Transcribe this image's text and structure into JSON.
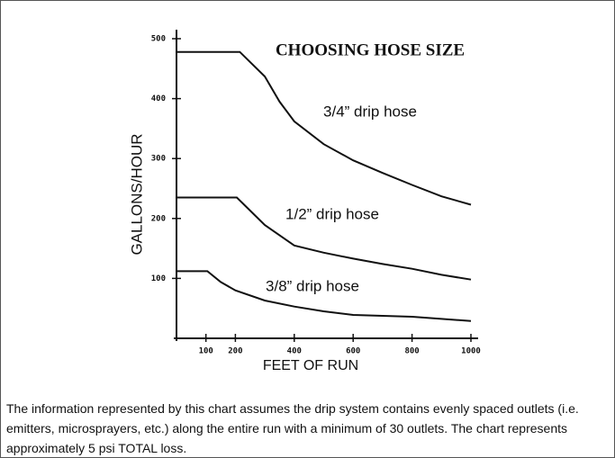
{
  "chart_data": {
    "type": "line",
    "title": "CHOOSING HOSE SIZE",
    "xlabel": "FEET OF RUN",
    "ylabel": "GALLONS/HOUR",
    "xlim": [
      0,
      1000
    ],
    "ylim": [
      0,
      500
    ],
    "xticks": [
      100,
      200,
      400,
      600,
      800,
      1000
    ],
    "yticks": [
      100,
      200,
      300,
      400,
      500
    ],
    "series": [
      {
        "name": "3/4” drip hose",
        "color": "#111111",
        "x": [
          0,
          215,
          300,
          350,
          400,
          500,
          600,
          700,
          800,
          900,
          1000
        ],
        "values": [
          478,
          478,
          437,
          395,
          362,
          324,
          297,
          276,
          256,
          237,
          223
        ]
      },
      {
        "name": "1/2” drip hose",
        "color": "#111111",
        "x": [
          0,
          205,
          300,
          400,
          500,
          600,
          700,
          800,
          900,
          1000
        ],
        "values": [
          235,
          235,
          189,
          155,
          143,
          133,
          124,
          116,
          106,
          98
        ]
      },
      {
        "name": "3/8” drip hose",
        "color": "#111111",
        "x": [
          0,
          105,
          150,
          200,
          300,
          400,
          500,
          600,
          800,
          1000
        ],
        "values": [
          112,
          112,
          94,
          80,
          63,
          53,
          45,
          39,
          36,
          29
        ]
      }
    ]
  },
  "caption": "The information represented by this chart assumes the drip system contains evenly spaced outlets (i.e. emitters, microsprayers, etc.) along the entire run with a minimum of 30 outlets. The chart represents approximately 5 psi TOTAL loss."
}
